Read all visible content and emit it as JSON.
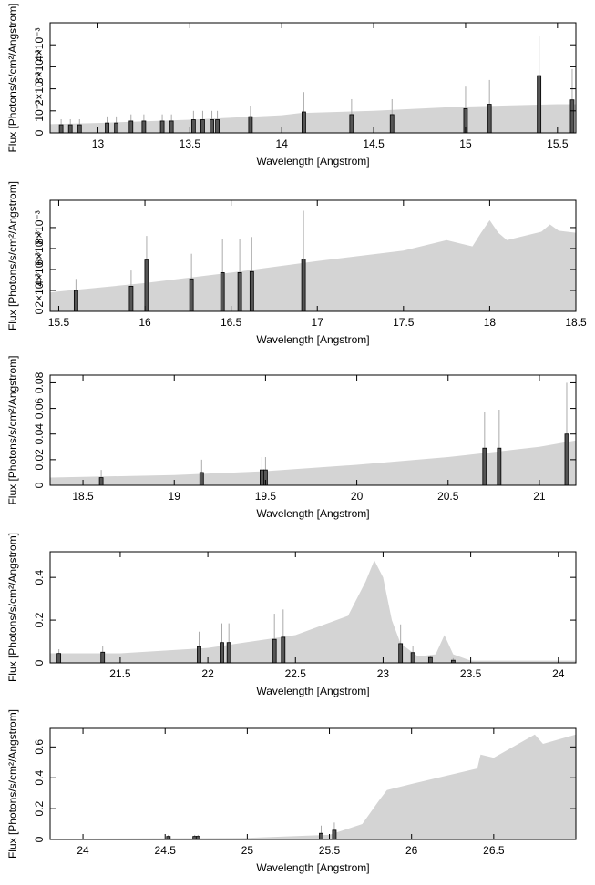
{
  "chart_data": [
    {
      "type": "spectrum",
      "x_label": "Wavelength [Angstrom]",
      "y_label": "Flux [Photons/s/cm²/Angstrom]",
      "xlim": [
        12.74,
        15.6
      ],
      "xticks": [
        13,
        13.5,
        14,
        14.5,
        15,
        15.5
      ],
      "ylim": [
        0,
        0.005
      ],
      "yticks": [
        0,
        {
          "value": 0.001,
          "label": "10⁻³"
        },
        {
          "value": 0.002,
          "label": "2×10⁻³"
        },
        {
          "value": 0.003,
          "label": "3×10⁻³"
        },
        {
          "value": 0.004,
          "label": "4×10⁻³"
        }
      ],
      "model": {
        "color": "#d4d4d4",
        "x": [
          12.74,
          13,
          13.5,
          14,
          14.1,
          14.5,
          15,
          15.5,
          15.6
        ],
        "values": [
          0.0004,
          0.00045,
          0.0006,
          0.0008,
          0.0009,
          0.001,
          0.0012,
          0.0013,
          0.0013
        ]
      },
      "data": {
        "color": "#555555",
        "x": [
          12.8,
          12.85,
          12.9,
          13.05,
          13.1,
          13.18,
          13.25,
          13.35,
          13.4,
          13.52,
          13.57,
          13.62,
          13.65,
          13.83,
          14.12,
          14.38,
          14.6,
          15.0,
          15.13,
          15.4,
          15.58
        ],
        "values": [
          0.00037,
          0.00037,
          0.00037,
          0.00045,
          0.00045,
          0.00054,
          0.00054,
          0.00054,
          0.00054,
          0.0006,
          0.0006,
          0.0006,
          0.0006,
          0.00074,
          0.00095,
          0.00083,
          0.00083,
          0.0011,
          0.0013,
          0.0026,
          0.0015
        ],
        "errors": [
          0.00025,
          0.00025,
          0.00025,
          0.0003,
          0.0003,
          0.0003,
          0.0003,
          0.0003,
          0.0003,
          0.0004,
          0.0004,
          0.0004,
          0.0004,
          0.0005,
          0.0009,
          0.0007,
          0.0007,
          0.001,
          0.0011,
          0.0018,
          0.0014
        ]
      }
    },
    {
      "type": "spectrum",
      "x_label": "Wavelength [Angstrom]",
      "y_label": "Flux [Photons/s/cm²/Angstrom]",
      "xlim": [
        15.45,
        18.5
      ],
      "xticks": [
        15.5,
        16,
        16.5,
        17,
        17.5,
        18,
        18.5
      ],
      "ylim": [
        0,
        0.0106
      ],
      "yticks": [
        0,
        {
          "value": 0.002,
          "label": "2×10⁻³"
        },
        {
          "value": 0.004,
          "label": "4×10⁻³"
        },
        {
          "value": 0.006,
          "label": "6×10⁻³"
        },
        {
          "value": 0.008,
          "label": "8×10⁻³"
        }
      ],
      "model": {
        "color": "#d4d4d4",
        "x": [
          15.45,
          15.5,
          16,
          16.5,
          17,
          17.5,
          17.75,
          17.9,
          17.95,
          18.0,
          18.05,
          18.1,
          18.3,
          18.35,
          18.4,
          18.5
        ],
        "values": [
          0.0018,
          0.0019,
          0.0027,
          0.0037,
          0.0048,
          0.0058,
          0.0068,
          0.0062,
          0.0075,
          0.0087,
          0.0075,
          0.0068,
          0.0076,
          0.0083,
          0.0077,
          0.0075
        ]
      },
      "data": {
        "color": "#555555",
        "x": [
          15.6,
          15.92,
          16.01,
          16.27,
          16.45,
          16.55,
          16.62,
          16.92
        ],
        "values": [
          0.002,
          0.0024,
          0.0049,
          0.0031,
          0.0037,
          0.0037,
          0.0038,
          0.005
        ],
        "errors": [
          0.0011,
          0.0015,
          0.0023,
          0.0024,
          0.0032,
          0.0032,
          0.0033,
          0.0046
        ]
      }
    },
    {
      "type": "spectrum",
      "x_label": "Wavelength [Angstrom]",
      "y_label": "Flux [Photons/s/cm²/Angstrom]",
      "xlim": [
        18.32,
        21.2
      ],
      "xticks": [
        18.5,
        19,
        19.5,
        20,
        20.5,
        21
      ],
      "ylim": [
        0,
        0.086
      ],
      "yticks": [
        0,
        0.02,
        0.04,
        0.06,
        0.08
      ],
      "model": {
        "color": "#d4d4d4",
        "x": [
          18.32,
          19,
          19.5,
          20,
          20.5,
          21,
          21.2
        ],
        "values": [
          0.006,
          0.008,
          0.011,
          0.016,
          0.022,
          0.03,
          0.035
        ]
      },
      "data": {
        "color": "#555555",
        "x": [
          18.6,
          19.15,
          19.48,
          19.5,
          20.7,
          20.78,
          21.15
        ],
        "values": [
          0.006,
          0.01,
          0.012,
          0.012,
          0.029,
          0.029,
          0.04
        ],
        "errors": [
          0.006,
          0.01,
          0.01,
          0.01,
          0.028,
          0.03,
          0.04
        ]
      }
    },
    {
      "type": "spectrum",
      "x_label": "Wavelength [Angstrom]",
      "y_label": "Flux [Photons/s/cm²/Angstrom]",
      "xlim": [
        21.1,
        24.1
      ],
      "xticks": [
        21.5,
        22,
        22.5,
        23,
        23.5,
        24
      ],
      "ylim": [
        0,
        0.52
      ],
      "yticks": [
        0,
        0.2,
        0.4
      ],
      "model": {
        "color": "#d4d4d4",
        "x": [
          21.1,
          21.5,
          22,
          22.5,
          22.8,
          22.9,
          22.95,
          23.0,
          23.05,
          23.1,
          23.2,
          23.3,
          23.35,
          23.4,
          23.5,
          24.1
        ],
        "values": [
          0.045,
          0.045,
          0.07,
          0.13,
          0.22,
          0.38,
          0.48,
          0.4,
          0.2,
          0.09,
          0.03,
          0.04,
          0.13,
          0.04,
          0.01,
          0.01
        ]
      },
      "data": {
        "color": "#555555",
        "x": [
          21.15,
          21.4,
          21.95,
          22.08,
          22.12,
          22.38,
          22.43,
          23.1,
          23.17,
          23.27,
          23.4
        ],
        "values": [
          0.044,
          0.05,
          0.076,
          0.095,
          0.095,
          0.11,
          0.12,
          0.09,
          0.048,
          0.025,
          0.012
        ],
        "errors": [
          0.02,
          0.03,
          0.07,
          0.09,
          0.09,
          0.12,
          0.13,
          0.09,
          0.03,
          0.01,
          0.01
        ]
      }
    },
    {
      "type": "spectrum",
      "x_label": "Wavelength [Angstrom]",
      "y_label": "Flux [Photons/s/cm²/Angstrom]",
      "xlim": [
        23.8,
        27.0
      ],
      "xticks": [
        24,
        24.5,
        25,
        25.5,
        26,
        26.5
      ],
      "ylim": [
        0,
        0.72
      ],
      "yticks": [
        0,
        0.2,
        0.4,
        0.6
      ],
      "model": {
        "color": "#d4d4d4",
        "x": [
          23.8,
          25,
          25.5,
          25.7,
          25.8,
          25.85,
          26,
          26.4,
          26.42,
          26.5,
          26.75,
          26.8,
          27.0
        ],
        "values": [
          0.005,
          0.01,
          0.03,
          0.1,
          0.25,
          0.32,
          0.36,
          0.46,
          0.55,
          0.53,
          0.68,
          0.62,
          0.68
        ]
      },
      "data": {
        "color": "#555555",
        "x": [
          24.52,
          24.68,
          24.7,
          25.45,
          25.53
        ],
        "values": [
          0.02,
          0.02,
          0.02,
          0.04,
          0.06
        ],
        "errors": [
          0.01,
          0.01,
          0.01,
          0.05,
          0.05
        ]
      }
    }
  ]
}
